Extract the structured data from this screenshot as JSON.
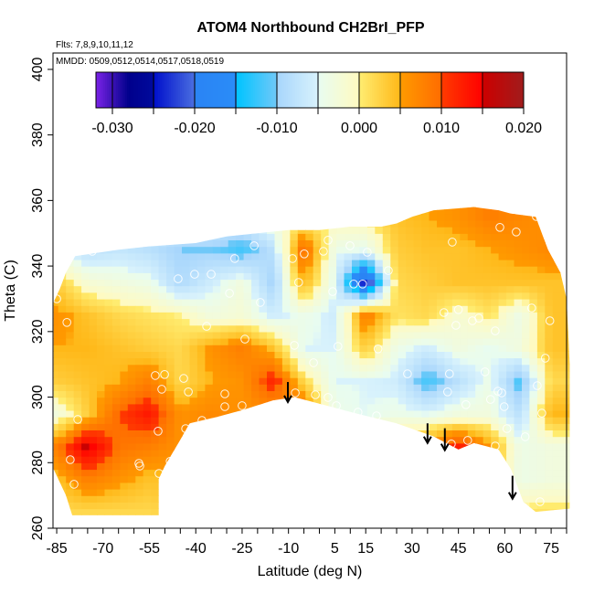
{
  "chart_data": {
    "type": "heatmap",
    "title": "ATOM4 Northbound CH2BrI_PFP",
    "subtitle_flights": "Flts: 7,8,9,10,11,12",
    "subtitle_dates": "MMDD: 0509,0512,0514,0517,0518,0519",
    "xlabel": "Latitude (deg N)",
    "ylabel": "Theta (C)",
    "xlim": [
      -86.2,
      80
    ],
    "ylim": [
      260,
      405
    ],
    "x_tick_step": 5,
    "x_tick_labels": [
      "-85",
      "-70",
      "-55",
      "-40",
      "-25",
      "-10",
      "5",
      "15",
      "30",
      "45",
      "60",
      "75"
    ],
    "y_ticks": [
      260,
      280,
      300,
      320,
      340,
      360,
      380,
      400
    ],
    "y_tick_labels": [
      "260",
      "280",
      "300",
      "320",
      "340",
      "360",
      "380",
      "400"
    ],
    "colorbar": {
      "range": [
        -0.032,
        0.02
      ],
      "tick_step": 0.005,
      "divider_step": 0.005,
      "tick_labels": [
        {
          "value": -0.03,
          "label": "-0.030"
        },
        {
          "value": -0.02,
          "label": "-0.020"
        },
        {
          "value": -0.01,
          "label": "-0.010"
        },
        {
          "value": 0.0,
          "label": "0.000"
        },
        {
          "value": 0.01,
          "label": "0.010"
        },
        {
          "value": 0.02,
          "label": "0.020"
        }
      ],
      "palette": [
        [
          -0.032,
          "#7a22e8"
        ],
        [
          -0.03,
          "#3c12b6"
        ],
        [
          -0.028,
          "#00008c"
        ],
        [
          -0.025,
          "#000a9c"
        ],
        [
          -0.0249,
          "#0010cc"
        ],
        [
          -0.02,
          "#4a6ee0"
        ],
        [
          -0.0199,
          "#2a84f4"
        ],
        [
          -0.015,
          "#2a8cf8"
        ],
        [
          -0.0149,
          "#00c4ff"
        ],
        [
          -0.01,
          "#70c8f8"
        ],
        [
          -0.0099,
          "#a8d6fc"
        ],
        [
          -0.005,
          "#d8f2fc"
        ],
        [
          -0.0049,
          "#e8fcf0"
        ],
        [
          0.0,
          "#fffac0"
        ],
        [
          0.0001,
          "#ffec70"
        ],
        [
          0.005,
          "#ffb818"
        ],
        [
          0.0051,
          "#ff9a00"
        ],
        [
          0.01,
          "#ff6c00"
        ],
        [
          0.0101,
          "#ff3a00"
        ],
        [
          0.015,
          "#ff0000"
        ],
        [
          0.0151,
          "#cc0000"
        ],
        [
          0.02,
          "#a01c1c"
        ]
      ]
    },
    "grid": {
      "lat": [
        -85,
        -75,
        -65,
        -55,
        -45,
        -35,
        -25,
        -15,
        -5,
        5,
        15,
        25,
        35,
        45,
        55,
        65,
        75
      ],
      "theta": [
        265,
        275,
        285,
        295,
        305,
        315,
        325,
        335,
        345,
        355
      ],
      "values": [
        [
          0.002,
          0.002,
          0.002,
          0.002,
          0.003,
          0.004,
          0.004,
          0.004,
          0.004,
          0.003,
          0.002,
          0.002,
          0.004,
          0.006,
          0.002,
          0.001,
          0.001
        ],
        [
          0.004,
          0.008,
          0.006,
          0.004,
          0.005,
          0.005,
          0.005,
          0.005,
          0.005,
          0.003,
          0.003,
          0.004,
          0.006,
          0.01,
          0.004,
          -0.004,
          -0.003
        ],
        [
          0.008,
          0.016,
          0.009,
          0.008,
          0.006,
          0.006,
          0.006,
          0.007,
          0.008,
          0.002,
          0.002,
          0.004,
          0.007,
          0.013,
          0.006,
          -0.004,
          -0.003
        ],
        [
          -0.003,
          0.003,
          0.01,
          0.013,
          0.006,
          0.007,
          0.006,
          0.006,
          0.01,
          -0.004,
          -0.005,
          -0.004,
          -0.005,
          -0.003,
          -0.003,
          -0.008,
          0.005
        ],
        [
          0.003,
          0.004,
          0.005,
          0.008,
          0.002,
          0.005,
          0.006,
          0.012,
          0.002,
          -0.005,
          -0.005,
          -0.006,
          -0.012,
          -0.008,
          -0.004,
          -0.012,
          0.002
        ],
        [
          0.005,
          0.005,
          0.004,
          0.003,
          0.002,
          0.006,
          0.008,
          0.004,
          -0.005,
          -0.005,
          0.003,
          -0.004,
          -0.006,
          -0.003,
          -0.005,
          -0.003,
          0.004
        ],
        [
          0.006,
          0.004,
          0.002,
          0.001,
          0.0,
          -0.003,
          -0.002,
          -0.006,
          -0.004,
          -0.006,
          0.008,
          0.001,
          0.002,
          -0.002,
          0.001,
          -0.004,
          0.004
        ],
        [
          0.003,
          -0.002,
          -0.003,
          -0.004,
          -0.009,
          -0.006,
          -0.003,
          -0.01,
          0.005,
          -0.005,
          -0.025,
          0.002,
          0.003,
          0.004,
          0.004,
          0.004,
          0.004
        ],
        [
          -0.005,
          -0.008,
          -0.007,
          -0.008,
          -0.01,
          -0.01,
          -0.012,
          -0.008,
          0.01,
          -0.004,
          -0.005,
          0.003,
          0.004,
          0.004,
          0.005,
          0.006,
          0.007
        ],
        [
          -0.003,
          -0.004,
          -0.004,
          -0.005,
          -0.006,
          -0.006,
          -0.006,
          -0.002,
          0.0,
          0.0,
          0.001,
          0.004,
          0.005,
          0.006,
          0.008,
          0.007,
          0.006
        ]
      ]
    },
    "domain_upper": [
      [
        -86,
        329
      ],
      [
        -84,
        333
      ],
      [
        -82,
        338
      ],
      [
        -79,
        343
      ],
      [
        -65,
        345
      ],
      [
        -55,
        346
      ],
      [
        -40,
        347
      ],
      [
        -30,
        349
      ],
      [
        -20,
        350
      ],
      [
        -10,
        351
      ],
      [
        0,
        351
      ],
      [
        10,
        352
      ],
      [
        20,
        352
      ],
      [
        25,
        353
      ],
      [
        30,
        355
      ],
      [
        37,
        357
      ],
      [
        50,
        358
      ],
      [
        58,
        357
      ],
      [
        62,
        356
      ],
      [
        70,
        355
      ],
      [
        72,
        350
      ],
      [
        74,
        345
      ],
      [
        78,
        338
      ],
      [
        80,
        330
      ],
      [
        81,
        310
      ]
    ],
    "domain_lower": [
      [
        81,
        266
      ],
      [
        70,
        265
      ],
      [
        66,
        268
      ],
      [
        62,
        278
      ],
      [
        58,
        284
      ],
      [
        50,
        286
      ],
      [
        45,
        284
      ],
      [
        37,
        288
      ],
      [
        25,
        292
      ],
      [
        12,
        295
      ],
      [
        0,
        298
      ],
      [
        -8,
        300
      ],
      [
        -15,
        299
      ],
      [
        -25,
        296
      ],
      [
        -33,
        294
      ],
      [
        -42,
        292
      ],
      [
        -45,
        287
      ],
      [
        -50,
        279
      ],
      [
        -52,
        275
      ],
      [
        -52,
        264
      ],
      [
        -80,
        264
      ],
      [
        -82,
        270
      ],
      [
        -86,
        278
      ]
    ],
    "samples": [
      [
        -73.5,
        344.5
      ],
      [
        -21.1,
        346.2
      ],
      [
        -27.4,
        342.3
      ],
      [
        -4.9,
        343.7
      ],
      [
        -8.7,
        342.3
      ],
      [
        -45.7,
        336.1
      ],
      [
        -40.4,
        337.5
      ],
      [
        -35,
        337.5
      ],
      [
        -6.7,
        335
      ],
      [
        -29.1,
        331.7
      ],
      [
        -19.1,
        328.9
      ],
      [
        -85,
        330
      ],
      [
        -81.7,
        322.8
      ],
      [
        -36.5,
        321.6
      ],
      [
        -24.1,
        317.7
      ],
      [
        -8.1,
        315.8
      ],
      [
        -53.1,
        306.6
      ],
      [
        -50.1,
        306.9
      ],
      [
        -43.9,
        305.7
      ],
      [
        -51,
        302.4
      ],
      [
        -42.4,
        301.6
      ],
      [
        -30.6,
        301
      ],
      [
        -7.8,
        301.3
      ],
      [
        -30.6,
        297.1
      ],
      [
        -25,
        297.4
      ],
      [
        -78.2,
        293.2
      ],
      [
        -38,
        292.9
      ],
      [
        -43.3,
        290.4
      ],
      [
        -52.2,
        289.6
      ],
      [
        -80.6,
        280.9
      ],
      [
        -58.4,
        279.8
      ],
      [
        -58.1,
        279
      ],
      [
        -48.3,
        280.4
      ],
      [
        -51.9,
        276.7
      ],
      [
        -79.4,
        273.4
      ],
      [
        70.2,
        355.1
      ],
      [
        58.4,
        351.8
      ],
      [
        63.7,
        350.4
      ],
      [
        43,
        347.3
      ],
      [
        2.8,
        347.9
      ],
      [
        9.9,
        346.2
      ],
      [
        1.3,
        344.5
      ],
      [
        15.5,
        344.2
      ],
      [
        22.3,
        338.6
      ],
      [
        11.1,
        334.5
      ],
      [
        14,
        334.5
      ],
      [
        4.3,
        332.2
      ],
      [
        68.7,
        327.2
      ],
      [
        45,
        326.7
      ],
      [
        40.3,
        325.8
      ],
      [
        51.6,
        324.1
      ],
      [
        49.5,
        323.3
      ],
      [
        44.2,
        321.9
      ],
      [
        74.6,
        323.3
      ],
      [
        56.9,
        320.2
      ],
      [
        6,
        315.5
      ],
      [
        19,
        314.7
      ],
      [
        73.1,
        311.9
      ],
      [
        -1.9,
        310.5
      ],
      [
        28.5,
        307.1
      ],
      [
        42.1,
        307.1
      ],
      [
        53.6,
        307.7
      ],
      [
        70.5,
        303.5
      ],
      [
        57.8,
        301.8
      ],
      [
        59,
        301.3
      ],
      [
        41.5,
        301.6
      ],
      [
        -1.3,
        300.7
      ],
      [
        2.8,
        299.9
      ],
      [
        55.4,
        299.3
      ],
      [
        47.4,
        297.7
      ],
      [
        59.8,
        297.1
      ],
      [
        5.5,
        297.4
      ],
      [
        12.5,
        295.4
      ],
      [
        18.5,
        294.3
      ],
      [
        72,
        295.1
      ],
      [
        60.7,
        290.4
      ],
      [
        66.6,
        287.9
      ],
      [
        42.7,
        285.7
      ],
      [
        48,
        286.8
      ],
      [
        56.9,
        285.1
      ],
      [
        58.1,
        278.1
      ],
      [
        60.1,
        274.8
      ],
      [
        66,
        266.4
      ],
      [
        71.4,
        268.1
      ]
    ],
    "arrows": [
      [
        -10.2,
        304.6,
        298.5
      ],
      [
        35,
        292,
        286
      ],
      [
        40.6,
        290.5,
        283.8
      ],
      [
        62.5,
        276,
        269
      ]
    ]
  }
}
